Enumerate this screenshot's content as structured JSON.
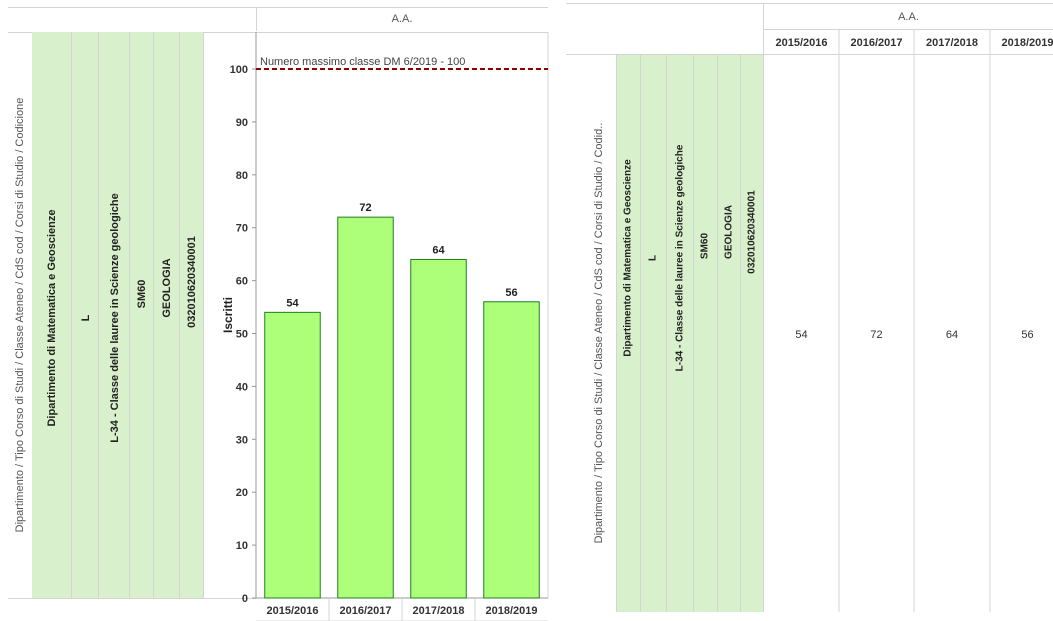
{
  "left_panel": {
    "column_header": "A.A.",
    "row_header_title": "Dipartimento  /  Tipo Corso di Studi  /  Classe Ateneo  /  CdS cod  /  Corsi di Studio  /  Codicione",
    "row_values": [
      "Dipartimento di Matematica e Geoscienze",
      "L",
      "L-34 - Classe delle lauree in Scienze geologiche",
      "SM60",
      "GEOLOGIA",
      "032010620340001"
    ],
    "reference_line_label": "Numero massimo classe DM 6/2019 - 100"
  },
  "chart_data": {
    "type": "bar",
    "categories": [
      "2015/2016",
      "2016/2017",
      "2017/2018",
      "2018/2019"
    ],
    "values": [
      54,
      72,
      64,
      56
    ],
    "title": "",
    "xlabel": "",
    "ylabel": "Iscritti",
    "ylim": [
      0,
      107
    ],
    "yticks": [
      0,
      10,
      20,
      30,
      40,
      50,
      60,
      70,
      80,
      90,
      100
    ],
    "reference_line": {
      "value": 100,
      "label": "Numero massimo classe DM 6/2019 - 100",
      "color": "#8b0000",
      "style": "dashed"
    },
    "bar_color": "#adff79",
    "bar_border": "#1f7f1f",
    "data_labels": true,
    "grid": false
  },
  "right_panel": {
    "column_header": "A.A.",
    "row_header_title": "Dipartimento  /  Tipo Corso di Studi  /  Classe Ateneo  /  CdS cod  /  Corsi di Studio  /  Codid..",
    "row_values": [
      "Dipartimento di Matematica e Geoscienze",
      "L",
      "L-34 - Classe delle lauree in Scienze geologiche",
      "SM60",
      "GEOLOGIA",
      "032010620340001"
    ],
    "columns": [
      "2015/2016",
      "2016/2017",
      "2017/2018",
      "2018/2019"
    ],
    "cells": [
      "54",
      "72",
      "64",
      "56"
    ]
  },
  "colors": {
    "row_header_bg": "#d9f0cc",
    "border": "#d4d4d4",
    "text": "#333333"
  }
}
